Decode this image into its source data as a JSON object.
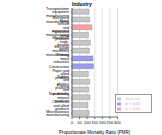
{
  "chart_data": {
    "type": "bar",
    "orientation": "horizontal",
    "stacked": true,
    "title": "Industry",
    "x_label": "Proportionate Mortality Ratio (PMR)",
    "categories": [
      "Transportation equipment manufacturing",
      "Machinery manufacturing",
      "Motor vehicle and equipment manufacturing",
      "Fabricated metal products",
      "Wholesale trade, durable goods",
      "Electrical machinery manufacturing",
      "Primary metal industries",
      "Construction",
      "Paper and allied products",
      "Rubber and plastics products",
      "Printing and publishing",
      "Non-metallic mineral products",
      "Chemicals and allied products",
      "Miscellaneous manufacturing"
    ],
    "series": [
      {
        "name": "Non-sig",
        "color": "#c8c8c8",
        "values": [
          112,
          118,
          null,
          109,
          121,
          115,
          null,
          null,
          108,
          117,
          111,
          119,
          106,
          113
        ]
      },
      {
        "name": "p < 0.05",
        "color": "#f4a0a0",
        "values": [
          null,
          null,
          131,
          null,
          null,
          null,
          null,
          null,
          null,
          null,
          null,
          null,
          null,
          null
        ]
      },
      {
        "name": "p < 0.01",
        "color": "#9a9af0",
        "values": [
          null,
          null,
          null,
          null,
          null,
          null,
          138,
          142,
          null,
          null,
          null,
          null,
          null,
          null
        ]
      }
    ],
    "xlim": [
      0,
      300
    ],
    "xticks": [
      0,
      50,
      100,
      150,
      200,
      250,
      300
    ],
    "legend": "lower right"
  }
}
